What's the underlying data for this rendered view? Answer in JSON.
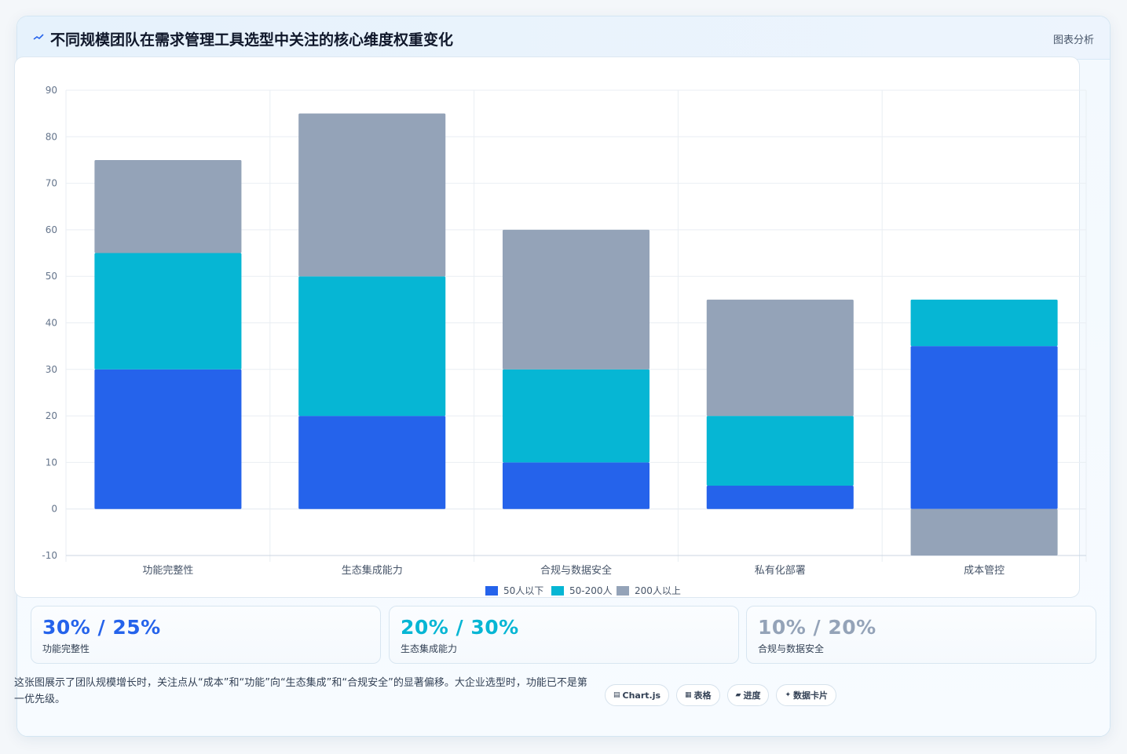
{
  "header": {
    "title": "不同规模团队在需求管理工具选型中关注的核心维度权重变化",
    "tag": "图表分析"
  },
  "colors": {
    "small": "#2563eb",
    "medium": "#06b6d4",
    "large": "#94a3b8"
  },
  "chart_data": {
    "type": "bar",
    "stacked": true,
    "categories": [
      "功能完整性",
      "生态集成能力",
      "合规与数据安全",
      "私有化部署",
      "成本管控"
    ],
    "series": [
      {
        "name": "50人以下",
        "values": [
          30,
          20,
          10,
          5,
          35
        ]
      },
      {
        "name": "50-200人",
        "values": [
          25,
          30,
          20,
          15,
          10
        ]
      },
      {
        "name": "200人以上",
        "values": [
          20,
          35,
          30,
          25,
          -10
        ]
      }
    ],
    "ylim": [
      -10,
      90
    ],
    "yticks": [
      90,
      80,
      70,
      60,
      50,
      40,
      30,
      20,
      10,
      0,
      -10
    ],
    "grid": true,
    "legend": "bottom-center"
  },
  "kpis": [
    {
      "value": "30% / 25%",
      "label": "功能完整性"
    },
    {
      "value": "20% / 30%",
      "label": "生态集成能力"
    },
    {
      "value": "10% / 20%",
      "label": "合规与数据安全"
    }
  ],
  "footnote": "这张图展示了团队规模增长时，关注点从“成本”和“功能”向“生态集成”和“合规安全”的显著偏移。大企业选型时，功能已不是第一优先级。",
  "chips": [
    {
      "icon": "chart-icon",
      "glyph": "▤",
      "label": "Chart.js"
    },
    {
      "icon": "table-icon",
      "glyph": "▦",
      "label": "表格"
    },
    {
      "icon": "progress-icon",
      "glyph": "▰",
      "label": "进度"
    },
    {
      "icon": "sparkle-icon",
      "glyph": "✦",
      "label": "数据卡片"
    }
  ]
}
